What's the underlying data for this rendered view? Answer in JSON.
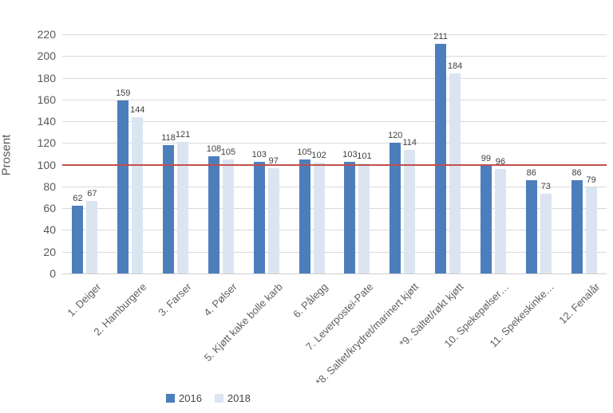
{
  "chart_data": {
    "type": "bar",
    "title": "",
    "xlabel": "",
    "ylabel": "Prosent",
    "ylim": [
      0,
      220
    ],
    "ytick_step": 20,
    "grid": true,
    "legend_position": "bottom",
    "categories": [
      "1. Deiger",
      "2. Hamburgere",
      "3. Farser",
      "4. Pølser",
      "5. Kjøtt kake bolle karb",
      "6. Pålegg",
      "7. Leverpostei-Pate",
      "*8. Saltet/krydret/marinert kjøtt",
      "*9. Saltet/røkt kjøtt",
      "10. Spekepølser…",
      "11. Spekeskinke…",
      "12. Fenalår"
    ],
    "series": [
      {
        "name": "2016",
        "color": "#4d7ebc",
        "values": [
          62,
          159,
          118,
          108,
          103,
          105,
          103,
          120,
          211,
          99,
          86,
          86
        ]
      },
      {
        "name": "2018",
        "color": "#dbe5f1",
        "values": [
          67,
          144,
          121,
          105,
          97,
          102,
          101,
          114,
          184,
          96,
          73,
          79
        ]
      }
    ],
    "reference_line": {
      "value": 100,
      "color": "#c0504d"
    }
  },
  "colors": {
    "gridline": "#d9d9d9",
    "axis_text": "#595959",
    "data_label_text": "#3f3f3f",
    "background": "#ffffff"
  }
}
